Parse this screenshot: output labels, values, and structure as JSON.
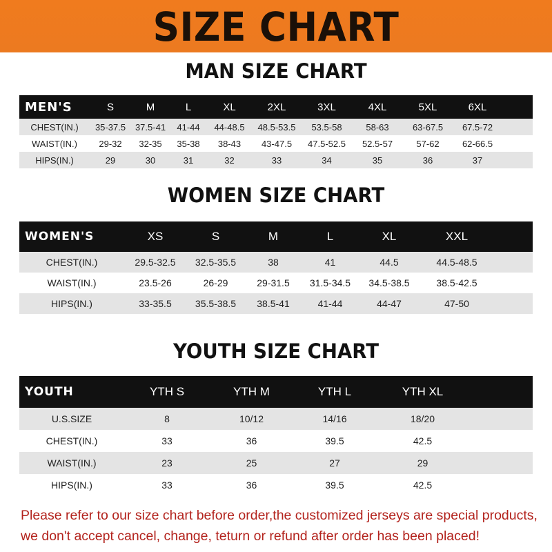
{
  "title": "SIZE CHART",
  "colors": {
    "banner": "#f07b1e",
    "header_row": "#111111",
    "note": "#b3231d"
  },
  "men": {
    "title": "MAN SIZE CHART",
    "header": [
      "MEN'S",
      "S",
      "M",
      "L",
      "XL",
      "2XL",
      "3XL",
      "4XL",
      "5XL",
      "6XL"
    ],
    "rows": [
      [
        "CHEST(IN.)",
        "35-37.5",
        "37.5-41",
        "41-44",
        "44-48.5",
        "48.5-53.5",
        "53.5-58",
        "58-63",
        "63-67.5",
        "67.5-72"
      ],
      [
        "WAIST(IN.)",
        "29-32",
        "32-35",
        "35-38",
        "38-43",
        "43-47.5",
        "47.5-52.5",
        "52.5-57",
        "57-62",
        "62-66.5"
      ],
      [
        "HIPS(IN.)",
        "29",
        "30",
        "31",
        "32",
        "33",
        "34",
        "35",
        "36",
        "37"
      ]
    ]
  },
  "women": {
    "title": "WOMEN SIZE CHART",
    "header": [
      "WOMEN'S",
      "XS",
      "S",
      "M",
      "L",
      "XL",
      "XXL"
    ],
    "rows": [
      [
        "CHEST(IN.)",
        "29.5-32.5",
        "32.5-35.5",
        "38",
        "41",
        "44.5",
        "44.5-48.5"
      ],
      [
        "WAIST(IN.)",
        "23.5-26",
        "26-29",
        "29-31.5",
        "31.5-34.5",
        "34.5-38.5",
        "38.5-42.5"
      ],
      [
        "HIPS(IN.)",
        "33-35.5",
        "35.5-38.5",
        "38.5-41",
        "41-44",
        "44-47",
        "47-50"
      ]
    ]
  },
  "youth": {
    "title": "YOUTH SIZE CHART",
    "header": [
      "YOUTH",
      "YTH S",
      "YTH M",
      "YTH L",
      "YTH XL"
    ],
    "rows": [
      [
        "U.S.SIZE",
        "8",
        "10/12",
        "14/16",
        "18/20"
      ],
      [
        "CHEST(IN.)",
        "33",
        "36",
        "39.5",
        "42.5"
      ],
      [
        "WAIST(IN.)",
        "23",
        "25",
        "27",
        "29"
      ],
      [
        "HIPS(IN.)",
        "33",
        "36",
        "39.5",
        "42.5"
      ]
    ]
  },
  "note": {
    "line1": "Please refer to our size chart before order,the customized jerseys are special products,",
    "line2": "we don't accept cancel, change, teturn or refund after order has been placed!"
  }
}
